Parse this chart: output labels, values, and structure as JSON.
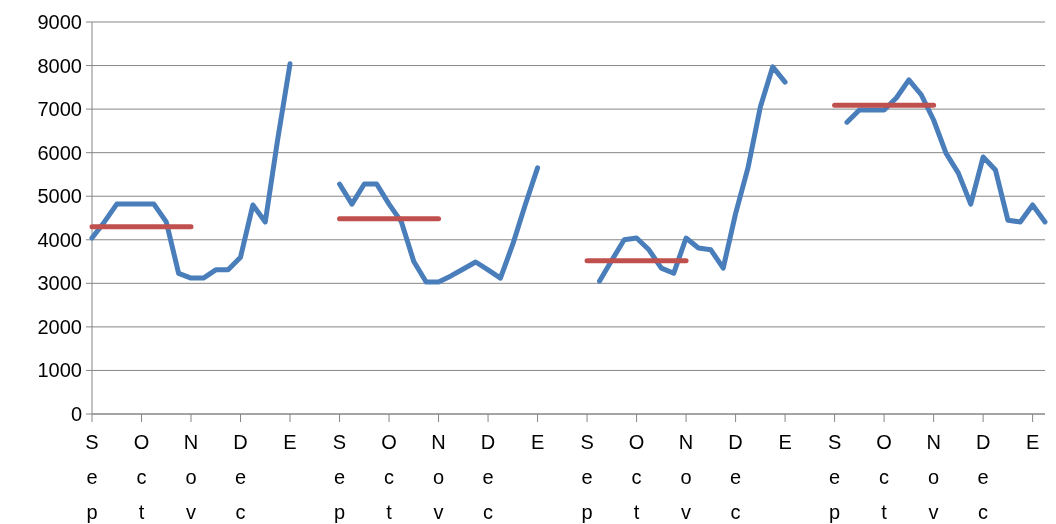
{
  "chart_data": {
    "type": "line",
    "ylim": [
      0,
      9000
    ],
    "yticks": [
      0,
      1000,
      2000,
      3000,
      4000,
      5000,
      6000,
      7000,
      8000,
      9000
    ],
    "grid": "y",
    "marker": "none",
    "line_style": "solid",
    "categories": [
      "Sep",
      null,
      null,
      null,
      "Oct",
      null,
      null,
      null,
      "Nov",
      null,
      null,
      null,
      "Dec",
      null,
      null,
      null,
      "E",
      null,
      null,
      null,
      "Sep",
      null,
      null,
      null,
      "Oct",
      null,
      null,
      null,
      "Nov",
      null,
      null,
      null,
      "Dec",
      null,
      null,
      null,
      "E",
      null,
      null,
      null,
      "Sep",
      null,
      null,
      null,
      "Oct",
      null,
      null,
      null,
      "Nov",
      null,
      null,
      null,
      "Dec",
      null,
      null,
      null,
      "E",
      null,
      null,
      null,
      "Sep",
      null,
      null,
      null,
      "Oct",
      null,
      null,
      null,
      "Nov",
      null,
      null,
      null,
      "Dec",
      null,
      null,
      null,
      "E",
      null
    ],
    "series": [
      {
        "color": "#4a7ebb",
        "values": [
          4040,
          4410,
          4820,
          4820,
          4820,
          4820,
          4410,
          3230,
          3120,
          3120,
          3310,
          3310,
          3600,
          4800,
          4410,
          6300,
          8040,
          null,
          null,
          null,
          5280,
          4820,
          5280,
          5280,
          4820,
          4410,
          3500,
          3030,
          3030,
          3170,
          3330,
          3490,
          3310,
          3120,
          3900,
          4800,
          5650,
          null,
          null,
          null,
          null,
          3050,
          3530,
          4000,
          4040,
          3770,
          3350,
          3230,
          4040,
          3810,
          3770,
          3350,
          4600,
          5650,
          7050,
          7970,
          7620,
          null,
          null,
          null,
          null,
          6700,
          6980,
          6980,
          6980,
          7260,
          7670,
          7330,
          6750,
          5990,
          5530,
          4820,
          5900,
          5600,
          4450,
          4410,
          4800,
          4410
        ]
      },
      {
        "color": "#c0504d",
        "values": [
          4300,
          4300,
          4300,
          4300,
          4300,
          4300,
          4300,
          4300,
          4300,
          null,
          null,
          null,
          null,
          null,
          null,
          null,
          null,
          null,
          null,
          null,
          null,
          null,
          null,
          null,
          null,
          null,
          null,
          null,
          null,
          null,
          null,
          null,
          null,
          null,
          null,
          null,
          null,
          null,
          null,
          null,
          null,
          null,
          null,
          null,
          null,
          null,
          null,
          null,
          null,
          null,
          null,
          null,
          null,
          null,
          null,
          null,
          null,
          null,
          null,
          null,
          null,
          null,
          null,
          null,
          null,
          null,
          null,
          null,
          null,
          null,
          null,
          null,
          null,
          null,
          null,
          null,
          null,
          null
        ]
      },
      {
        "color": "#c0504d",
        "values": [
          null,
          null,
          null,
          null,
          null,
          null,
          null,
          null,
          null,
          null,
          null,
          null,
          null,
          null,
          null,
          null,
          null,
          null,
          null,
          null,
          4480,
          4480,
          4480,
          4480,
          4480,
          4480,
          4480,
          4480,
          4480,
          null,
          null,
          null,
          null,
          null,
          null,
          null,
          null,
          null,
          null,
          null,
          null,
          null,
          null,
          null,
          null,
          null,
          null,
          null,
          null,
          null,
          null,
          null,
          null,
          null,
          null,
          null,
          null,
          null,
          null,
          null,
          null,
          null,
          null,
          null,
          null,
          null,
          null,
          null,
          null,
          null,
          null,
          null,
          null,
          null,
          null,
          null,
          null,
          null
        ]
      },
      {
        "color": "#c0504d",
        "values": [
          null,
          null,
          null,
          null,
          null,
          null,
          null,
          null,
          null,
          null,
          null,
          null,
          null,
          null,
          null,
          null,
          null,
          null,
          null,
          null,
          null,
          null,
          null,
          null,
          null,
          null,
          null,
          null,
          null,
          null,
          null,
          null,
          null,
          null,
          null,
          null,
          null,
          null,
          null,
          null,
          3520,
          3520,
          3520,
          3520,
          3520,
          3520,
          3520,
          3520,
          3520,
          null,
          null,
          null,
          null,
          null,
          null,
          null,
          null,
          null,
          null,
          null,
          null,
          null,
          null,
          null,
          null,
          null,
          null,
          null,
          null,
          null,
          null,
          null,
          null,
          null,
          null,
          null,
          null,
          null
        ]
      },
      {
        "color": "#c0504d",
        "values": [
          null,
          null,
          null,
          null,
          null,
          null,
          null,
          null,
          null,
          null,
          null,
          null,
          null,
          null,
          null,
          null,
          null,
          null,
          null,
          null,
          null,
          null,
          null,
          null,
          null,
          null,
          null,
          null,
          null,
          null,
          null,
          null,
          null,
          null,
          null,
          null,
          null,
          null,
          null,
          null,
          null,
          null,
          null,
          null,
          null,
          null,
          null,
          null,
          null,
          null,
          null,
          null,
          null,
          null,
          null,
          null,
          null,
          null,
          null,
          null,
          7090,
          7090,
          7090,
          7090,
          7090,
          7090,
          7090,
          7090,
          7090,
          null,
          null,
          null,
          null,
          null,
          null,
          null,
          null,
          null
        ]
      }
    ]
  }
}
